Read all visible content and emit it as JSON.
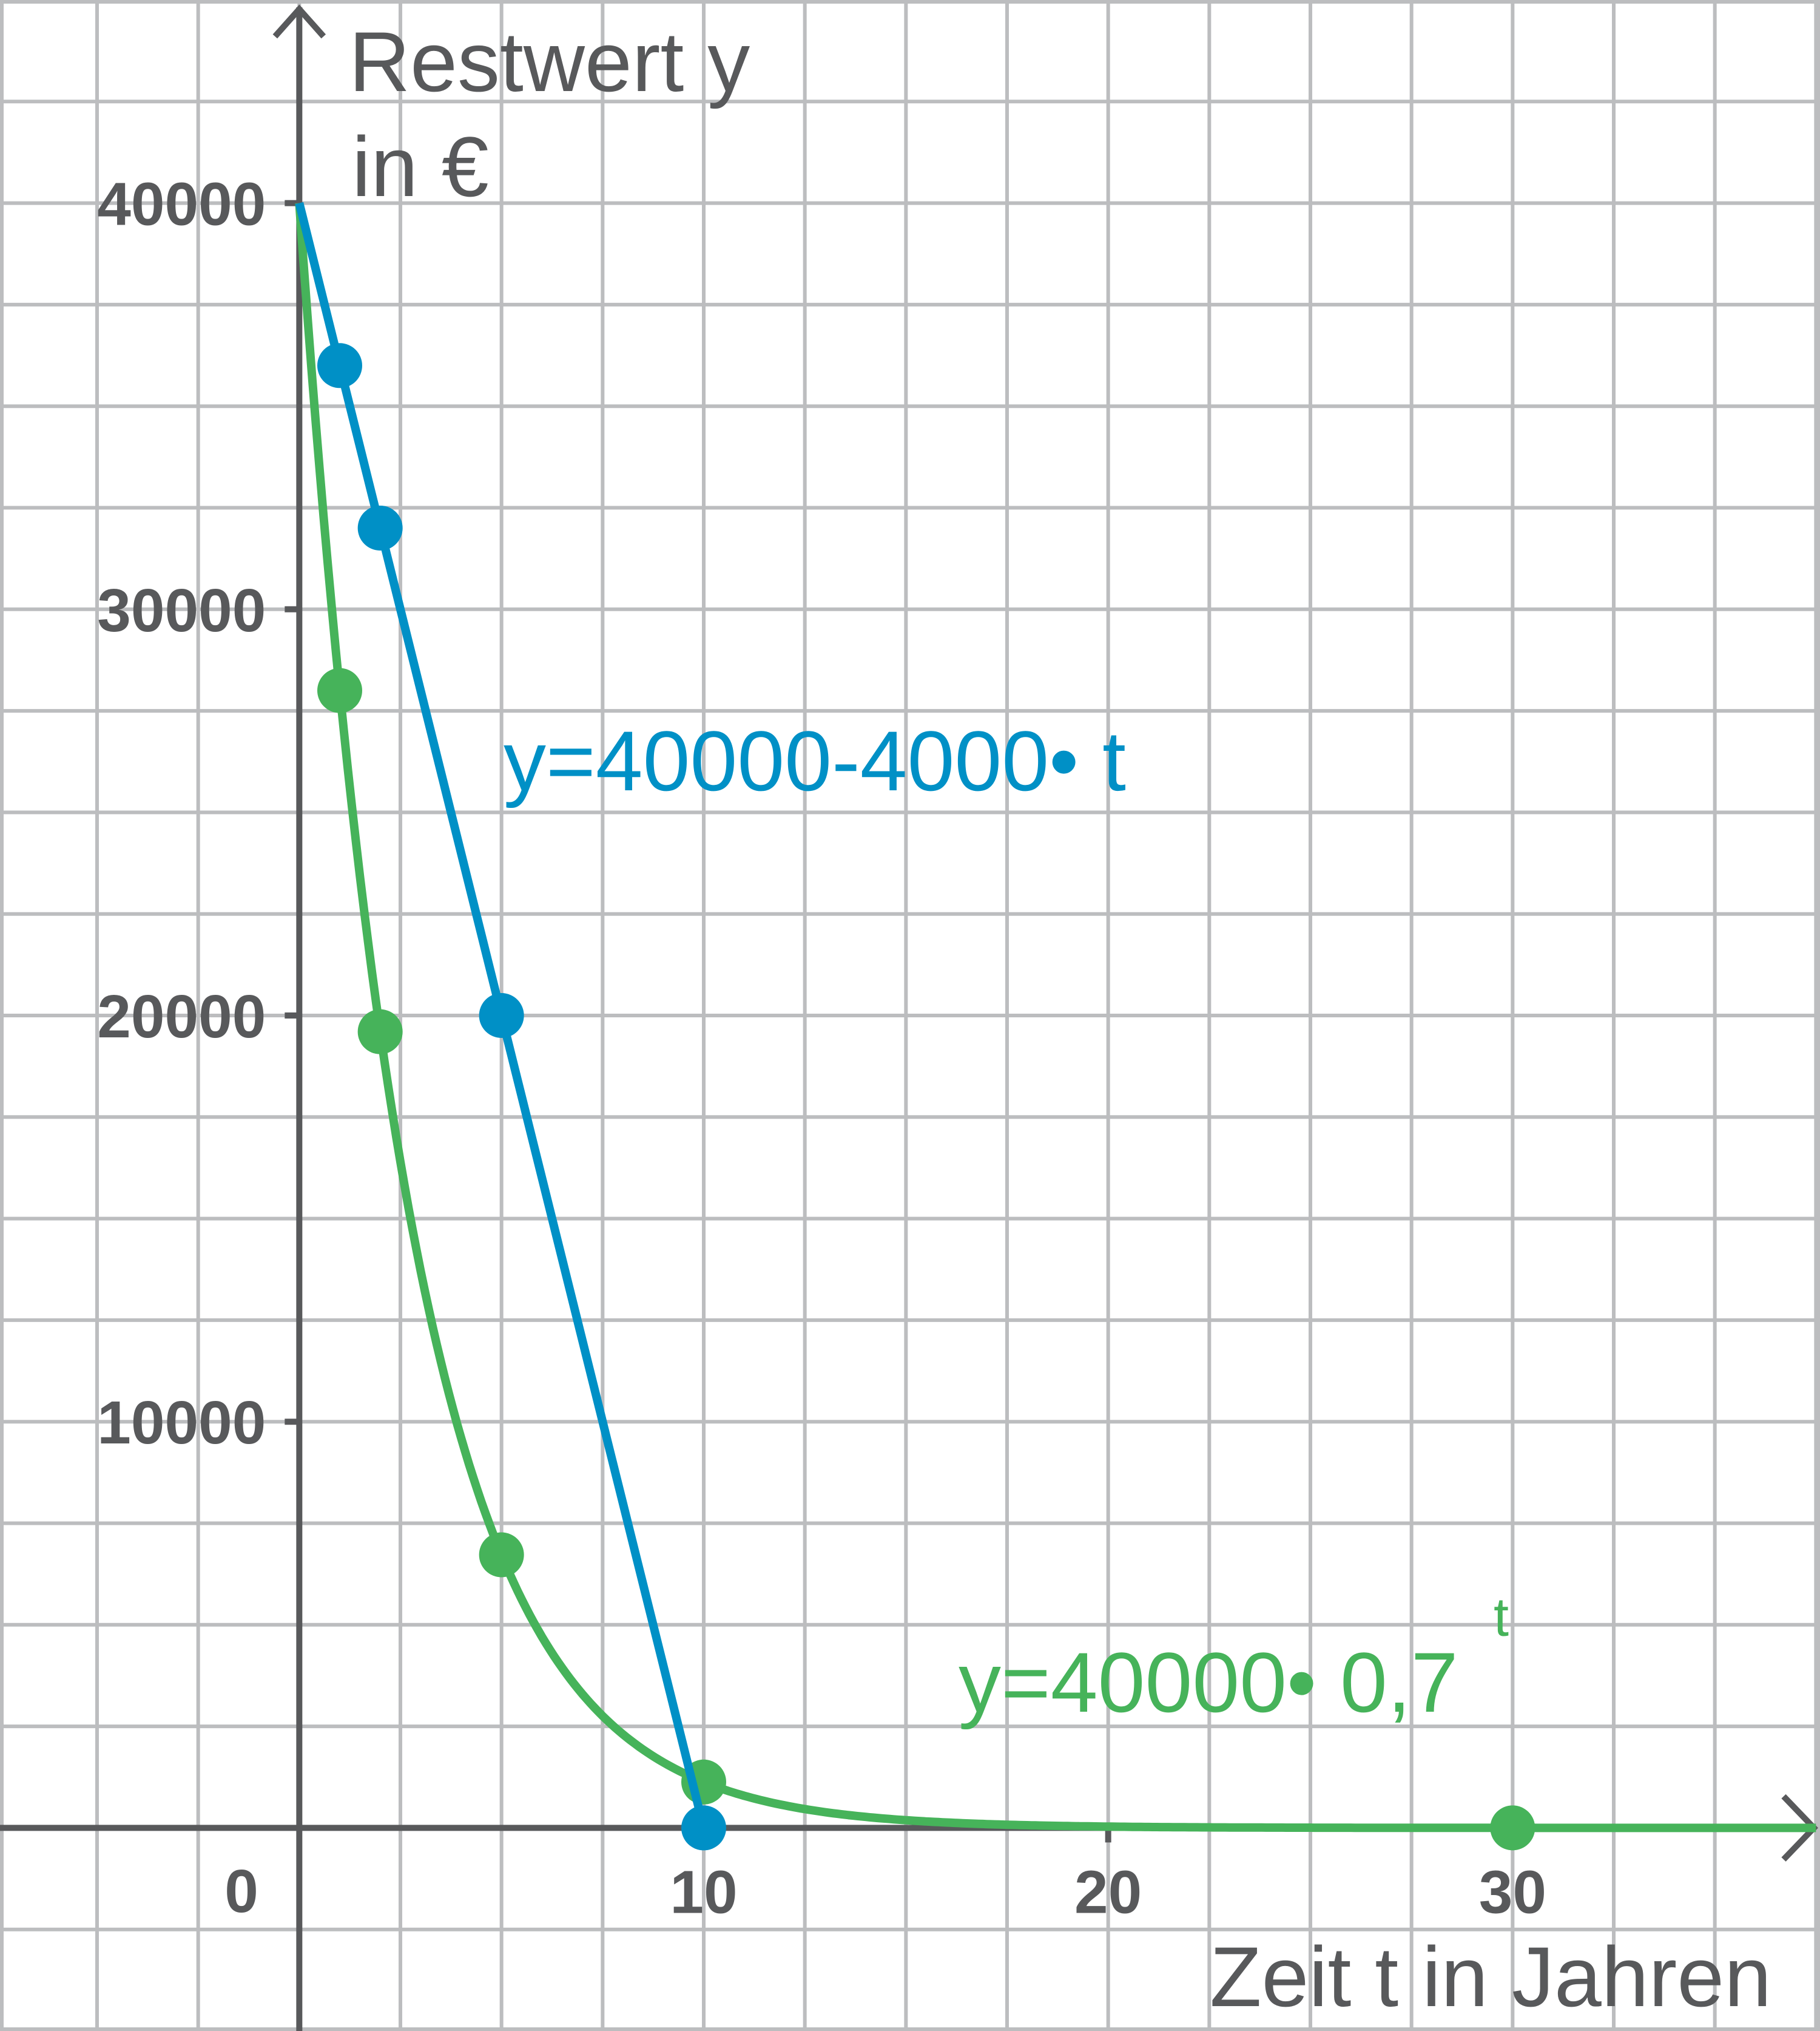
{
  "chart_data": {
    "type": "line",
    "xlabel": "Zeit t in Jahren",
    "ylabel_line1": "Restwert y",
    "ylabel_line2": "in €",
    "xlim": [
      -7.4,
      37.6
    ],
    "ylim": [
      -5000,
      45000
    ],
    "x_ticks": [
      {
        "value": 10,
        "label": "10"
      },
      {
        "value": 20,
        "label": "20"
      },
      {
        "value": 30,
        "label": "30"
      }
    ],
    "y_ticks": [
      {
        "value": 10000,
        "label": "10000"
      },
      {
        "value": 20000,
        "label": "20000"
      },
      {
        "value": 30000,
        "label": "30000"
      },
      {
        "value": 40000,
        "label": "40000"
      }
    ],
    "origin_label": "0",
    "grid": true,
    "grid_step_x": 2.5,
    "grid_step_y": 2500,
    "series": [
      {
        "name": "y=40000-4000• t",
        "color": "#0090c6",
        "kind": "linear",
        "formula_parts": [
          "y=40000-4000",
          "•",
          " t"
        ],
        "points": [
          {
            "x": 1,
            "y": 36000
          },
          {
            "x": 2,
            "y": 32000
          },
          {
            "x": 5,
            "y": 20000
          },
          {
            "x": 10,
            "y": 0
          }
        ]
      },
      {
        "name": "y=40000• 0,7",
        "color": "#46b35a",
        "kind": "exponential",
        "formula_parts": [
          "y=40000",
          "•",
          " 0,7"
        ],
        "formula_superscript": "t",
        "points": [
          {
            "x": 1,
            "y": 28000
          },
          {
            "x": 2,
            "y": 19600
          },
          {
            "x": 5,
            "y": 6723
          },
          {
            "x": 10,
            "y": 1130
          },
          {
            "x": 30,
            "y": 0.9
          }
        ]
      }
    ]
  },
  "colors": {
    "grid": "#bcbdbf",
    "axis": "#58595b"
  }
}
